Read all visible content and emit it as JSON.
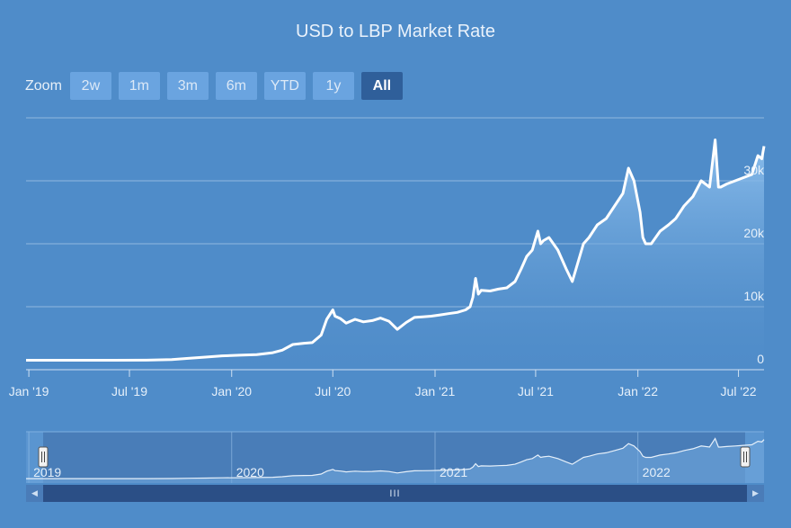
{
  "title": "USD to LBP Market Rate",
  "zoom": {
    "label": "Zoom",
    "buttons": [
      "2w",
      "1m",
      "3m",
      "6m",
      "YTD",
      "1y",
      "All"
    ],
    "selected": "All"
  },
  "colors": {
    "background": "#4f8cc9",
    "line": "#ffffff",
    "area_top": "#8ec0ee",
    "area_bottom": "#4f8cc9",
    "navigator_mask": "#4679b4",
    "scrollbar": "#2b4f86"
  },
  "chart_data": {
    "type": "area",
    "title": "USD to LBP Market Rate",
    "xlabel": "",
    "ylabel": "",
    "x_ticks": [
      "Jan '19",
      "Jul '19",
      "Jan '20",
      "Jul '20",
      "Jan '21",
      "Jul '21",
      "Jan '22",
      "Jul '22"
    ],
    "y_ticks": [
      "0",
      "10k",
      "20k",
      "30k"
    ],
    "ylim": [
      0,
      40000
    ],
    "grid": true,
    "legend": "none",
    "series": [
      {
        "x": [
          "2018-12-27",
          "2019-03-01",
          "2019-06-01",
          "2019-08-01",
          "2019-09-15",
          "2019-10-15",
          "2019-11-15",
          "2019-12-15",
          "2020-01-15",
          "2020-02-15",
          "2020-03-15",
          "2020-04-01",
          "2020-04-20",
          "2020-05-10",
          "2020-05-25",
          "2020-06-10",
          "2020-06-20",
          "2020-07-01",
          "2020-07-05",
          "2020-07-15",
          "2020-07-25",
          "2020-08-10",
          "2020-08-25",
          "2020-09-10",
          "2020-09-25",
          "2020-10-10",
          "2020-10-25",
          "2020-11-10",
          "2020-11-25",
          "2020-12-10",
          "2020-12-25",
          "2021-01-10",
          "2021-01-25",
          "2021-02-10",
          "2021-02-25",
          "2021-03-05",
          "2021-03-10",
          "2021-03-15",
          "2021-03-20",
          "2021-03-25",
          "2021-04-10",
          "2021-04-25",
          "2021-05-10",
          "2021-05-25",
          "2021-06-05",
          "2021-06-15",
          "2021-06-25",
          "2021-07-05",
          "2021-07-10",
          "2021-07-15",
          "2021-07-25",
          "2021-08-10",
          "2021-08-25",
          "2021-09-05",
          "2021-09-15",
          "2021-09-25",
          "2021-10-05",
          "2021-10-20",
          "2021-11-05",
          "2021-11-20",
          "2021-12-05",
          "2021-12-15",
          "2021-12-25",
          "2022-01-05",
          "2022-01-10",
          "2022-01-15",
          "2022-01-25",
          "2022-02-10",
          "2022-02-25",
          "2022-03-10",
          "2022-03-25",
          "2022-04-10",
          "2022-04-25",
          "2022-05-10",
          "2022-05-20",
          "2022-05-26",
          "2022-05-30",
          "2022-06-10",
          "2022-06-25",
          "2022-07-10",
          "2022-07-25",
          "2022-08-05",
          "2022-08-12",
          "2022-08-16"
        ],
        "values": [
          1500,
          1500,
          1500,
          1520,
          1600,
          1800,
          2000,
          2200,
          2300,
          2400,
          2700,
          3100,
          4000,
          4200,
          4300,
          5500,
          8000,
          9500,
          8500,
          8100,
          7400,
          8000,
          7600,
          7800,
          8200,
          7700,
          6400,
          7500,
          8300,
          8400,
          8500,
          8700,
          8900,
          9100,
          9500,
          10000,
          11500,
          14500,
          12000,
          12600,
          12500,
          12800,
          13000,
          14000,
          16000,
          18000,
          19000,
          22000,
          20000,
          20500,
          21000,
          19000,
          16000,
          14000,
          17000,
          20000,
          21000,
          23000,
          24000,
          26000,
          28000,
          32000,
          30000,
          25000,
          21000,
          20000,
          20000,
          22000,
          23000,
          24000,
          26000,
          27500,
          30000,
          29000,
          36500,
          29000,
          29000,
          29500,
          30000,
          30500,
          31000,
          34000,
          33500,
          35500
        ]
      }
    ]
  },
  "navigator": {
    "year_labels": [
      "2019",
      "2020",
      "2021",
      "2022"
    ],
    "scrollbar_grip": "III"
  }
}
